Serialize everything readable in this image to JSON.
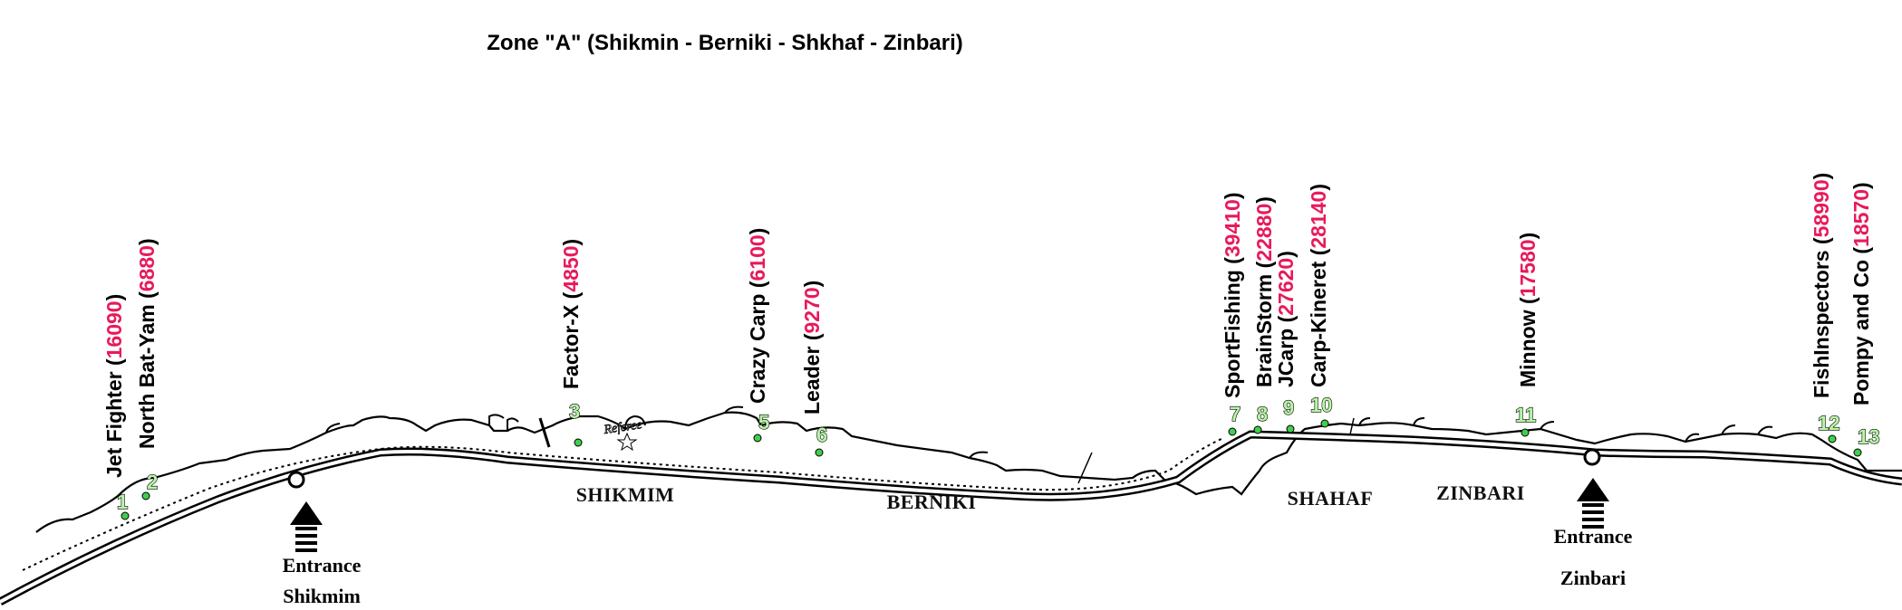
{
  "title": "Zone \"A\" (Shikmin - Berniki - Shkhaf - Zinbari)",
  "areas": [
    "SHIKMIM",
    "BERNIKI",
    "SHAHAF",
    "ZINBARI"
  ],
  "reference_label": "Referee",
  "entrances": [
    {
      "line1": "Entrance",
      "line2": "Shikmim"
    },
    {
      "line1": "Entrance",
      "line2": "Zinbari"
    }
  ],
  "spots": [
    {
      "num": "1",
      "name": "Jet Fighter",
      "value": "16090"
    },
    {
      "num": "2",
      "name": "North Bat-Yam",
      "value": "6880"
    },
    {
      "num": "3",
      "name": "Factor-X",
      "value": "4850"
    },
    {
      "num": "5",
      "name": "Crazy Carp",
      "value": "6100"
    },
    {
      "num": "6",
      "name": "Leader",
      "value": "9270"
    },
    {
      "num": "7",
      "name": "SportFishing",
      "value": "39410"
    },
    {
      "num": "8",
      "name": "BrainStorm",
      "value": "22880"
    },
    {
      "num": "9",
      "name": "JCarp",
      "value": "27620"
    },
    {
      "num": "10",
      "name": "Carp-Kineret",
      "value": "28140"
    },
    {
      "num": "11",
      "name": "Minnow",
      "value": "17580"
    },
    {
      "num": "12",
      "name": "FishInspectors",
      "value": "58990"
    },
    {
      "num": "13",
      "name": "Pompy and Co",
      "value": "18570"
    }
  ],
  "colors": {
    "score": "#e8195a",
    "spot_number": "#b6f5a4",
    "spot_dot": "#3fcf4a"
  }
}
